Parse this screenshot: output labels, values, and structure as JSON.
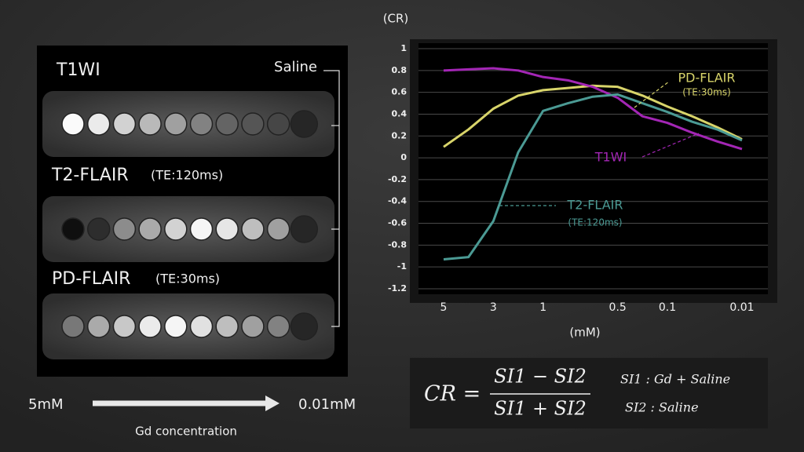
{
  "panel": {
    "rows": [
      {
        "label": "T1WI"
      },
      {
        "label": "T2-FLAIR",
        "te": "(TE:120ms)"
      },
      {
        "label": "PD-FLAIR",
        "te": "(TE:30ms)"
      }
    ],
    "saline": "Saline",
    "from": "5mM",
    "to": "0.01mM",
    "axis": "Gd concentration"
  },
  "chart_data": {
    "type": "line",
    "y_label": "(CR)",
    "x_label": "(mM)",
    "categories": [
      "5",
      null,
      "3",
      null,
      "1",
      null,
      null,
      "0.5",
      null,
      "0.1",
      null,
      null,
      "0.01"
    ],
    "ylim": [
      -1.2,
      1
    ],
    "yticks": [
      1,
      0.8,
      0.6,
      0.4,
      0.2,
      0,
      -0.2,
      -0.4,
      -0.6,
      -0.8,
      -1,
      -1.2
    ],
    "grid": true,
    "series": [
      {
        "name": "PD-FLAIR",
        "te": "(TE:30ms)",
        "color": "#d8d46a",
        "values": [
          0.1,
          0.26,
          0.45,
          0.57,
          0.62,
          0.64,
          0.66,
          0.65,
          0.57,
          0.47,
          0.38,
          0.28,
          0.17
        ]
      },
      {
        "name": "T1WI",
        "color": "#a326b5",
        "values": [
          0.8,
          0.81,
          0.82,
          0.8,
          0.74,
          0.71,
          0.65,
          0.55,
          0.38,
          0.32,
          0.23,
          0.15,
          0.08
        ]
      },
      {
        "name": "T2-FLAIR",
        "te": "(TE:120ms)",
        "color": "#4b9a94",
        "values": [
          -0.93,
          -0.91,
          -0.58,
          0.05,
          0.43,
          0.5,
          0.56,
          0.58,
          0.5,
          0.42,
          0.33,
          0.26,
          0.16
        ]
      }
    ]
  },
  "formula": {
    "lhs": "CR =",
    "numerator": "SI1 − SI2",
    "denominator": "SI1 + SI2",
    "legend": [
      "SI1 : Gd + Saline",
      "SI2 :  Saline"
    ]
  }
}
